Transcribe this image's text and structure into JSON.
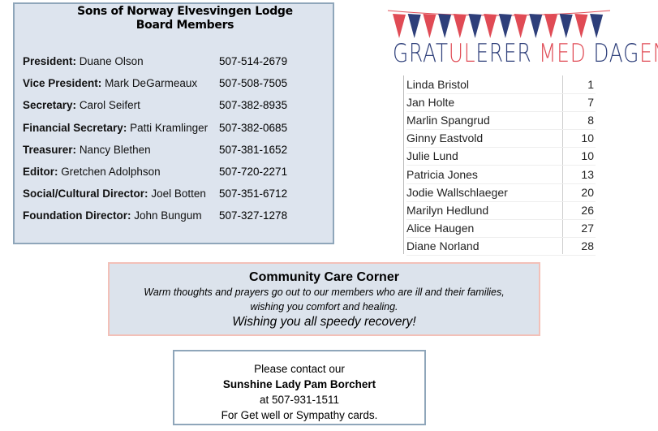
{
  "board": {
    "title": "Sons of Norway Elvesvingen Lodge Board Members",
    "members": [
      {
        "role": "President:",
        "name": "Duane Olson",
        "phone": "507-514-2679"
      },
      {
        "role": "Vice President:",
        "name": "Mark DeGarmeaux",
        "phone": "507-508-7505"
      },
      {
        "role": "Secretary:",
        "name": "Carol Seifert",
        "phone": "507-382-8935"
      },
      {
        "role": "Financial Secretary:",
        "name": "Patti Kramlinger",
        "phone": "507-382-0685"
      },
      {
        "role": "Treasurer:",
        "name": "Nancy Blethen",
        "phone": "507-381-1652"
      },
      {
        "role": "Editor:",
        "name": "Gretchen Adolphson",
        "phone": "507-720-2271"
      },
      {
        "role": "Social/Cultural Director:",
        "name": "Joel Botten",
        "phone": "507-351-6712"
      },
      {
        "role": "Foundation Director:",
        "name": "John Bungum",
        "phone": "507-327-1278"
      }
    ]
  },
  "birthdays": {
    "heading": "GRATULERER MED DAGEN!",
    "colors": {
      "blue": "#2e3f7a",
      "red": "#e04b55"
    },
    "list": [
      {
        "name": "Linda Bristol",
        "day": "1"
      },
      {
        "name": "Jan Holte",
        "day": "7"
      },
      {
        "name": "Marlin Spangrud",
        "day": "8"
      },
      {
        "name": "Ginny Eastvold",
        "day": "10"
      },
      {
        "name": "Julie Lund",
        "day": "10"
      },
      {
        "name": "Patricia Jones",
        "day": "13"
      },
      {
        "name": "Jodie Wallschlaeger",
        "day": "20"
      },
      {
        "name": "Marilyn Hedlund",
        "day": "26"
      },
      {
        "name": "Alice Haugen",
        "day": "27"
      },
      {
        "name": "Diane Norland",
        "day": "28"
      }
    ]
  },
  "care": {
    "title": "Community Care Corner",
    "line1": "Warm thoughts and prayers go out to our members who are ill and their families,",
    "line2": "wishing you comfort and healing.",
    "line3": "Wishing you all speedy recovery!"
  },
  "sunshine": {
    "line1": "Please contact our",
    "line2": "Sunshine Lady Pam Borchert",
    "line3": "at 507-931-1511",
    "line4": "For Get well or Sympathy cards."
  }
}
